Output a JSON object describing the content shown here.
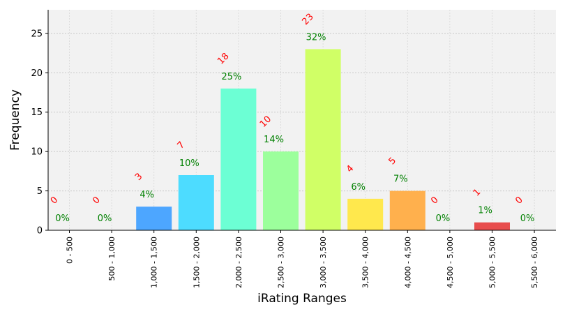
{
  "chart_data": {
    "type": "bar",
    "categories": [
      "0 - 500",
      "500 - 1,000",
      "1,000 - 1,500",
      "1,500 - 2,000",
      "2,000 - 2,500",
      "2,500 - 3,000",
      "3,000 - 3,500",
      "3,500 - 4,000",
      "4,000 - 4,500",
      "4,500 - 5,000",
      "5,000 - 5,500",
      "5,500 - 6,000"
    ],
    "values": [
      0,
      0,
      3,
      7,
      18,
      10,
      23,
      4,
      5,
      0,
      1,
      0
    ],
    "count_labels": [
      "0",
      "0",
      "3",
      "7",
      "18",
      "10",
      "23",
      "4",
      "5",
      "0",
      "1",
      "0"
    ],
    "percent_labels": [
      "0%",
      "0%",
      "4%",
      "10%",
      "25%",
      "14%",
      "32%",
      "6%",
      "7%",
      "0%",
      "1%",
      "0%"
    ],
    "colors": [
      "#4da6ff",
      "#4da6ff",
      "#4da6ff",
      "#4ddcff",
      "#6cffd4",
      "#9cff9c",
      "#d0ff66",
      "#ffe84d",
      "#ffb04d",
      "#ff7a4d",
      "#e84d4d",
      "#e84d4d"
    ],
    "title": "",
    "xlabel": "iRating Ranges",
    "ylabel": "Frequency",
    "ylim": [
      0,
      28
    ],
    "yticks": [
      0,
      5,
      10,
      15,
      20,
      25
    ],
    "grid": true,
    "background_color": "#f2f2f2",
    "count_label_color": "#ff0000",
    "percent_label_color": "#008000"
  }
}
